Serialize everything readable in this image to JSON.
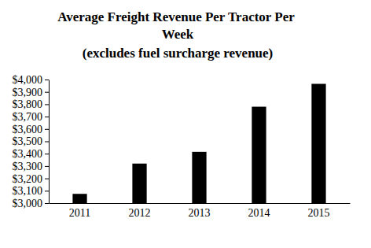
{
  "chart_data": {
    "type": "bar",
    "title": "Average Freight Revenue Per Tractor Per Week",
    "subtitle": "(excludes fuel surcharge revenue)",
    "categories": [
      "2011",
      "2012",
      "2013",
      "2014",
      "2015"
    ],
    "values": [
      3075,
      3320,
      3415,
      3780,
      3965
    ],
    "color": "#000000",
    "ylim": [
      3000,
      4000
    ],
    "yticks": [
      {
        "value": 3000,
        "label": "$3,000"
      },
      {
        "value": 3100,
        "label": "$3,100"
      },
      {
        "value": 3200,
        "label": "$3,200"
      },
      {
        "value": 3300,
        "label": "$3,300"
      },
      {
        "value": 3400,
        "label": "$3,400"
      },
      {
        "value": 3500,
        "label": "$3,500"
      },
      {
        "value": 3600,
        "label": "$3,600"
      },
      {
        "value": 3700,
        "label": "$3,700"
      },
      {
        "value": 3800,
        "label": "$3,800"
      },
      {
        "value": 3900,
        "label": "$3,900"
      },
      {
        "value": 4000,
        "label": "$4,000"
      }
    ],
    "grid": false
  }
}
